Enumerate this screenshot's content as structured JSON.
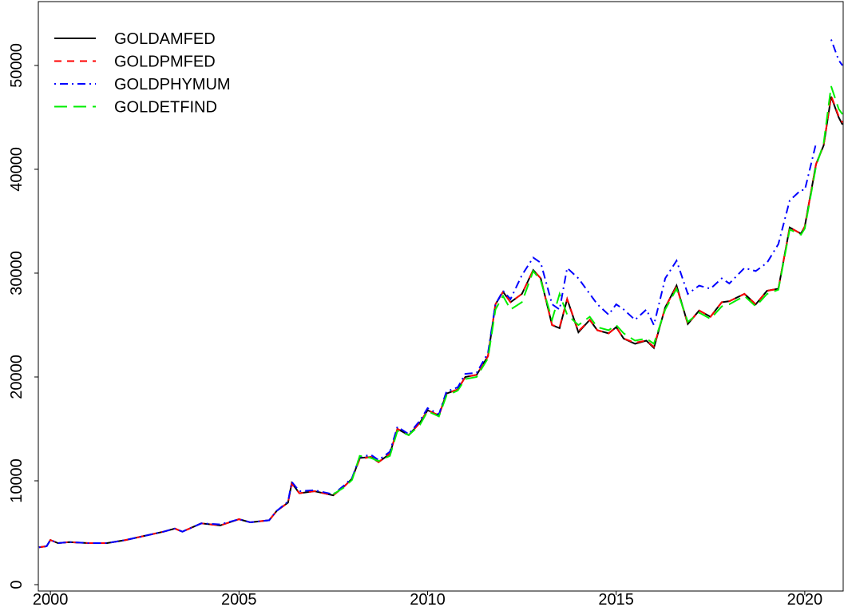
{
  "chart_data": {
    "type": "line",
    "x": [
      1999.7,
      1999.9,
      2000.0,
      2000.2,
      2000.5,
      2001.0,
      2001.5,
      2002.0,
      2002.5,
      2003.0,
      2003.3,
      2003.5,
      2004.0,
      2004.5,
      2005.0,
      2005.3,
      2005.8,
      2006.0,
      2006.3,
      2006.4,
      2006.6,
      2007.0,
      2007.5,
      2007.8,
      2008.0,
      2008.2,
      2008.5,
      2008.7,
      2009.0,
      2009.2,
      2009.5,
      2009.8,
      2010.0,
      2010.3,
      2010.5,
      2010.8,
      2011.0,
      2011.3,
      2011.6,
      2011.8,
      2012.0,
      2012.2,
      2012.5,
      2012.8,
      2013.0,
      2013.3,
      2013.5,
      2013.7,
      2014.0,
      2014.3,
      2014.5,
      2014.8,
      2015.0,
      2015.2,
      2015.5,
      2015.8,
      2016.0,
      2016.3,
      2016.6,
      2016.9,
      2017.2,
      2017.5,
      2017.8,
      2018.0,
      2018.4,
      2018.7,
      2019.0,
      2019.3,
      2019.6,
      2019.9,
      2020.0,
      2020.3,
      2020.5,
      2020.7,
      2020.9,
      2021.0
    ],
    "series": [
      {
        "name": "GOLDAMFED",
        "color": "#000000",
        "dash": "none",
        "values": [
          3600,
          3700,
          4300,
          4000,
          4100,
          4000,
          4000,
          4300,
          4700,
          5100,
          5400,
          5100,
          5900,
          5700,
          6300,
          6000,
          6200,
          7100,
          7900,
          9800,
          8800,
          9000,
          8600,
          9500,
          10200,
          12200,
          12300,
          11800,
          12600,
          15000,
          14400,
          15600,
          16800,
          16300,
          18400,
          18800,
          20000,
          20200,
          22000,
          27000,
          28200,
          27200,
          28000,
          30300,
          29500,
          25000,
          24700,
          27500,
          24300,
          25500,
          24500,
          24200,
          24800,
          23700,
          23200,
          23500,
          22800,
          26700,
          28800,
          25100,
          26400,
          25800,
          27200,
          27300,
          28000,
          27000,
          28300,
          28500,
          34400,
          33800,
          34500,
          40500,
          42300,
          47000,
          45000,
          44300
        ]
      },
      {
        "name": "GOLDPMFED",
        "color": "#ff0000",
        "dash": "9,7",
        "values": [
          3600,
          3700,
          4300,
          4000,
          4100,
          4000,
          4000,
          4300,
          4700,
          5100,
          5400,
          5100,
          5900,
          5700,
          6300,
          6000,
          6200,
          7100,
          7900,
          9700,
          8800,
          9000,
          8600,
          9500,
          10200,
          12100,
          12300,
          11800,
          12600,
          15000,
          14400,
          15600,
          16800,
          16300,
          18400,
          18800,
          20000,
          20200,
          22000,
          27000,
          28200,
          27200,
          28000,
          30300,
          29500,
          25000,
          24800,
          27500,
          24400,
          25500,
          24500,
          24200,
          24800,
          23700,
          23300,
          23500,
          22900,
          26700,
          28700,
          25100,
          26400,
          25800,
          27200,
          27300,
          28000,
          27000,
          28300,
          28500,
          34400,
          33800,
          34500,
          40500,
          42300,
          47100,
          45100,
          44500
        ]
      },
      {
        "name": "GOLDPHYMUM",
        "color": "#0000ff",
        "dash": "2,5,10,5",
        "values": [
          3600,
          3700,
          4300,
          4000,
          4100,
          4000,
          4000,
          4300,
          4700,
          5100,
          5400,
          5100,
          5900,
          5800,
          6300,
          6000,
          6200,
          7100,
          8000,
          9900,
          9000,
          9100,
          8700,
          9600,
          10300,
          12300,
          12500,
          12000,
          12800,
          15200,
          14500,
          15800,
          17000,
          16400,
          18600,
          19000,
          20300,
          20400,
          22300,
          27000,
          28300,
          27500,
          29800,
          31500,
          31000,
          27000,
          26500,
          30500,
          29500,
          28000,
          27000,
          26000,
          27000,
          26500,
          25500,
          26500,
          25000,
          29500,
          31200,
          28000,
          28800,
          28500,
          29500,
          29000,
          30500,
          30200,
          31000,
          32800,
          37000,
          38000,
          38000,
          42500,
          null,
          52500,
          50500,
          50000
        ]
      },
      {
        "name": "GOLDETFIND",
        "color": "#00ee00",
        "dash": "16,8",
        "values": [
          null,
          null,
          null,
          null,
          null,
          null,
          null,
          null,
          null,
          null,
          null,
          null,
          null,
          null,
          null,
          null,
          null,
          null,
          null,
          null,
          null,
          null,
          8700,
          9400,
          10100,
          12400,
          12200,
          11900,
          12400,
          14800,
          14400,
          15400,
          16700,
          16200,
          18200,
          18700,
          19800,
          20000,
          21800,
          26500,
          27800,
          26500,
          27200,
          30200,
          29300,
          25500,
          28000,
          26000,
          25000,
          25800,
          24800,
          24500,
          25000,
          24200,
          23500,
          23700,
          23200,
          26500,
          28500,
          25300,
          26200,
          25600,
          26800,
          27000,
          27800,
          26800,
          28000,
          28400,
          34200,
          33700,
          34300,
          40300,
          42500,
          48000,
          45800,
          45300
        ]
      }
    ],
    "xlim": [
      1999.68,
      2021.04
    ],
    "ylim": [
      -615,
      56150
    ],
    "xticks": [
      2000,
      2005,
      2010,
      2015,
      2020
    ],
    "yticks": [
      0,
      10000,
      20000,
      30000,
      40000,
      50000
    ],
    "legend": "top-left"
  }
}
